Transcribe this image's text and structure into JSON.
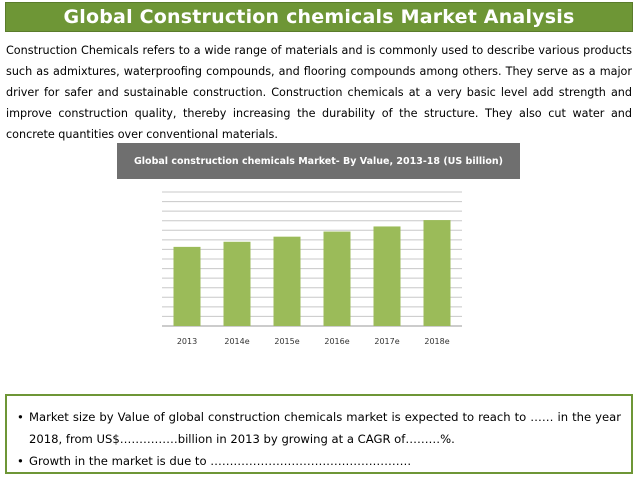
{
  "header": {
    "title": "Global Construction chemicals Market Analysis"
  },
  "intro": {
    "text": "Construction Chemicals refers to a wide range of materials and is commonly used to describe various products such as admixtures, waterproofing compounds, and flooring compounds among others. They serve as a major driver for safer and sustainable construction. Construction chemicals at a very basic level add strength and improve construction quality, thereby increasing the durability of the structure. They also cut water and concrete quantities over conventional materials."
  },
  "chart_data": {
    "type": "bar",
    "title": "Global construction chemicals Market- By Value, 2013-18 (US billion)",
    "categories": [
      "2013",
      "2014e",
      "2015e",
      "2016e",
      "2017e",
      "2018e"
    ],
    "values": [
      6.2,
      6.6,
      7.0,
      7.4,
      7.8,
      8.3
    ],
    "ylim": [
      0,
      10.5
    ],
    "grid": true,
    "legend": "none",
    "colors": {
      "bar": "#9bbb59",
      "grid": "#c8c8c8",
      "axis": "#9a9a9a",
      "header_bg": "#6f6f6f"
    }
  },
  "bullets": [
    "Market size by Value of global construction chemicals market is expected to reach to …… in the year 2018, from US$……………billion in 2013 by growing at a CAGR of………%.",
    "Growth in the market is due to ……………………………………………."
  ],
  "colors": {
    "accent": "#6e9636",
    "title_text": "#ffffff"
  }
}
